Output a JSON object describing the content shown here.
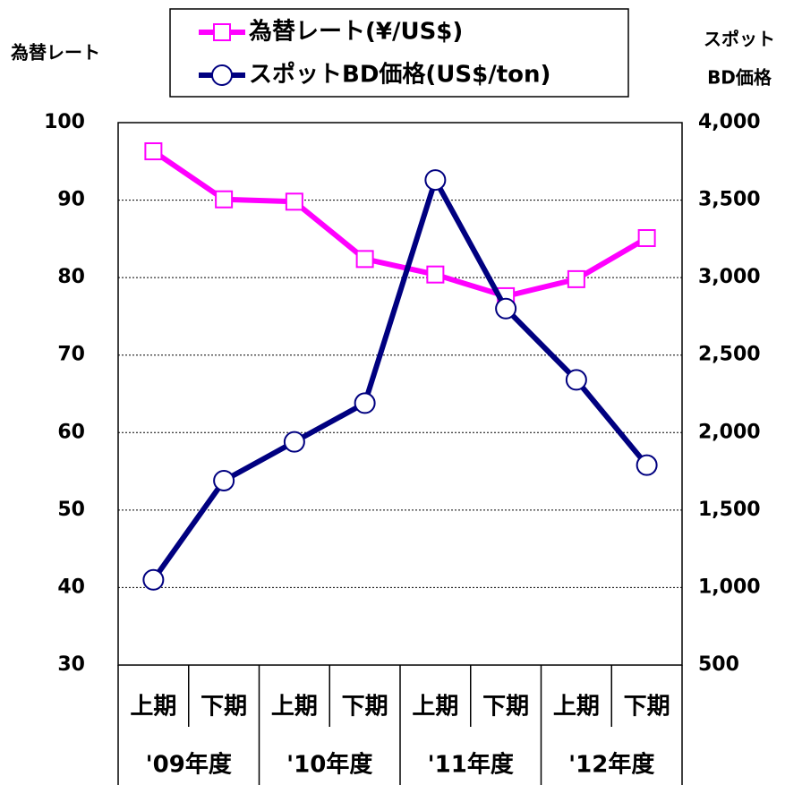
{
  "chart_data": {
    "type": "line",
    "y_label": "為替レート",
    "y2_label": [
      "スポット",
      "BD価格"
    ],
    "categories": [
      "上期",
      "下期",
      "上期",
      "下期",
      "上期",
      "下期",
      "上期",
      "下期"
    ],
    "groups": [
      "'09年度",
      "'10年度",
      "'11年度",
      "'12年度"
    ],
    "series": [
      {
        "name": "為替レート(¥/US$)",
        "color": "#ff00ff",
        "marker": "square",
        "values": [
          96.3,
          90.1,
          89.8,
          82.4,
          80.4,
          77.6,
          79.8,
          85.1
        ]
      },
      {
        "name": "スポットBD価格(US$/ton)",
        "color": "#000080",
        "marker": "circle",
        "axis": "y2",
        "values": [
          1050,
          1690,
          1940,
          2190,
          3630,
          2800,
          2340,
          1790
        ]
      }
    ],
    "ylim": [
      30,
      100
    ],
    "yticks": [
      30,
      40,
      50,
      60,
      70,
      80,
      90,
      100
    ],
    "y2lim": [
      500,
      4000
    ],
    "y2ticks": [
      500,
      {
        "value": 1000,
        "label": "1,000"
      },
      {
        "value": 1500,
        "label": "1,500"
      },
      {
        "value": 2000,
        "label": "2,000"
      },
      {
        "value": 2500,
        "label": "2,500"
      },
      {
        "value": 3000,
        "label": "3,000"
      },
      {
        "value": 3500,
        "label": "3,500"
      },
      {
        "value": 4000,
        "label": "4,000"
      }
    ],
    "grid": true
  }
}
